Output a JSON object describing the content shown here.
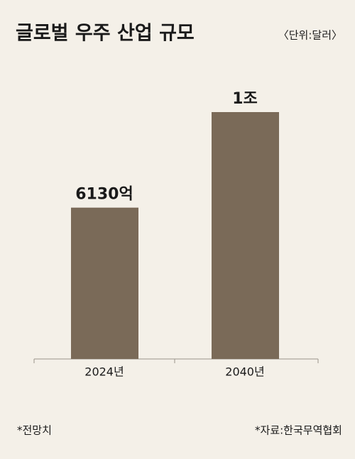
{
  "chart_data": {
    "type": "bar",
    "title": "글로벌 우주 산업 규모",
    "unit": "〈단위:달러〉",
    "categories": [
      "2024년",
      "2040년"
    ],
    "values": [
      613000000000,
      1000000000000
    ],
    "value_labels": [
      "6130억",
      "1조"
    ],
    "color": "#7a6a58",
    "notes": [
      "*전망치",
      "*자료:한국무역협회"
    ]
  }
}
